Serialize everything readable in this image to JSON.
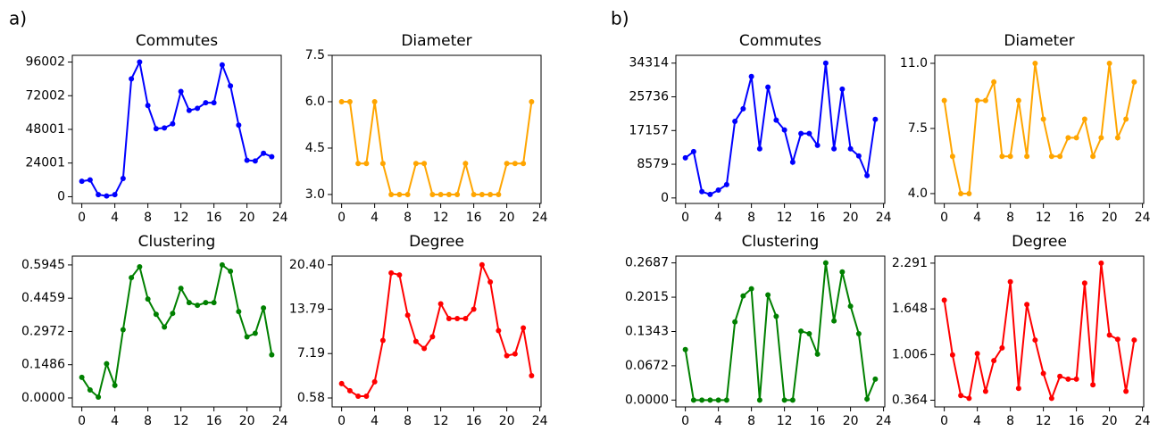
{
  "panel_labels": [
    "a)",
    "b)"
  ],
  "chart_data": [
    {
      "type": "line",
      "title": "Commutes",
      "color": "#0000ff",
      "x": [
        0,
        1,
        2,
        3,
        4,
        5,
        6,
        7,
        8,
        9,
        10,
        11,
        12,
        13,
        14,
        15,
        16,
        17,
        18,
        19,
        20,
        21,
        22,
        23
      ],
      "values": [
        11000,
        12000,
        1500,
        500,
        1500,
        13000,
        84000,
        96000,
        65000,
        48500,
        49000,
        52000,
        75000,
        61500,
        63000,
        67000,
        67000,
        94000,
        79000,
        51000,
        26000,
        25500,
        31000,
        28500
      ],
      "xlim": [
        -1.15,
        24.15
      ],
      "xticks": [
        0,
        4,
        8,
        12,
        16,
        20,
        24
      ],
      "ylim": [
        -4800,
        100800
      ],
      "yticks": [
        0,
        24001,
        48001,
        72002,
        96002
      ]
    },
    {
      "type": "line",
      "title": "Diameter",
      "color": "#ffa500",
      "x": [
        0,
        1,
        2,
        3,
        4,
        5,
        6,
        7,
        8,
        9,
        10,
        11,
        12,
        13,
        14,
        15,
        16,
        17,
        18,
        19,
        20,
        21,
        22,
        23
      ],
      "values": [
        6,
        6,
        4,
        4,
        6,
        4,
        3,
        3,
        3,
        4,
        4,
        3,
        3,
        3,
        3,
        4,
        3,
        3,
        3,
        3,
        4,
        4,
        4,
        6
      ],
      "xlim": [
        -1.15,
        24.15
      ],
      "xticks": [
        0,
        4,
        8,
        12,
        16,
        20,
        24
      ],
      "ylim": [
        2.71,
        7.5
      ],
      "yticks": [
        {
          "value": 3,
          "label": "3.0"
        },
        4.5,
        {
          "value": 6,
          "label": "6.0"
        },
        7.5
      ]
    },
    {
      "type": "line",
      "title": "Clustering",
      "color": "#008000",
      "x": [
        0,
        1,
        2,
        3,
        4,
        5,
        6,
        7,
        8,
        9,
        10,
        11,
        12,
        13,
        14,
        15,
        16,
        17,
        18,
        19,
        20,
        21,
        22,
        23
      ],
      "values": [
        0.092,
        0.036,
        0.004,
        0.153,
        0.056,
        0.305,
        0.538,
        0.586,
        0.442,
        0.374,
        0.317,
        0.378,
        0.49,
        0.426,
        0.414,
        0.426,
        0.426,
        0.5945,
        0.566,
        0.386,
        0.273,
        0.289,
        0.402,
        0.193
      ],
      "xlim": [
        -1.15,
        24.15
      ],
      "xticks": [
        0,
        4,
        8,
        12,
        16,
        20,
        24
      ],
      "ylim": [
        -0.04,
        0.634
      ],
      "yticks": [
        {
          "value": 0,
          "label": "0.0000"
        },
        0.1486,
        0.2972,
        0.4459,
        0.5945
      ]
    },
    {
      "type": "line",
      "title": "Degree",
      "color": "#ff0000",
      "x": [
        0,
        1,
        2,
        3,
        4,
        5,
        6,
        7,
        8,
        9,
        10,
        11,
        12,
        13,
        14,
        15,
        16,
        17,
        18,
        19,
        20,
        21,
        22,
        23
      ],
      "values": [
        2.72,
        1.65,
        0.85,
        0.85,
        2.99,
        9.15,
        19.2,
        18.9,
        12.9,
        9.0,
        7.95,
        9.7,
        14.6,
        12.4,
        12.4,
        12.4,
        13.8,
        20.4,
        17.85,
        10.6,
        6.87,
        7.14,
        11.0,
        3.9
      ],
      "xlim": [
        -1.15,
        24.15
      ],
      "xticks": [
        0,
        4,
        8,
        12,
        16,
        20,
        24
      ],
      "ylim": [
        -0.75,
        21.7
      ],
      "yticks": [
        0.58,
        7.19,
        13.79,
        {
          "value": 20.4,
          "label": "20.40"
        }
      ]
    },
    {
      "type": "line",
      "title": "Commutes",
      "color": "#0000ff",
      "x": [
        0,
        1,
        2,
        3,
        4,
        5,
        6,
        7,
        8,
        9,
        10,
        11,
        12,
        13,
        14,
        15,
        16,
        17,
        18,
        19,
        20,
        21,
        22,
        23
      ],
      "values": [
        10200,
        11800,
        1600,
        900,
        2000,
        3400,
        19500,
        22700,
        30900,
        12500,
        28200,
        19800,
        17300,
        9100,
        16400,
        16400,
        13400,
        34314,
        12500,
        27700,
        12500,
        10700,
        5700,
        20000
      ],
      "xlim": [
        -1.15,
        24.15
      ],
      "xticks": [
        0,
        4,
        8,
        12,
        16,
        20,
        24
      ],
      "ylim": [
        -1400,
        36300
      ],
      "yticks": [
        0,
        8579,
        17157,
        25736,
        34314
      ]
    },
    {
      "type": "line",
      "title": "Diameter",
      "color": "#ffa500",
      "x": [
        0,
        1,
        2,
        3,
        4,
        5,
        6,
        7,
        8,
        9,
        10,
        11,
        12,
        13,
        14,
        15,
        16,
        17,
        18,
        19,
        20,
        21,
        22,
        23
      ],
      "values": [
        9,
        6,
        4,
        4,
        9,
        9,
        10,
        6,
        6,
        9,
        6,
        11,
        8,
        6,
        6,
        7,
        7,
        8,
        6,
        7,
        11,
        7,
        8,
        10
      ],
      "xlim": [
        -1.15,
        24.15
      ],
      "xticks": [
        0,
        4,
        8,
        12,
        16,
        20,
        24
      ],
      "ylim": [
        3.47,
        11.43
      ],
      "yticks": [
        {
          "value": 4,
          "label": "4.0"
        },
        7.5,
        {
          "value": 11,
          "label": "11.0"
        }
      ]
    },
    {
      "type": "line",
      "title": "Clustering",
      "color": "#008000",
      "x": [
        0,
        1,
        2,
        3,
        4,
        5,
        6,
        7,
        8,
        9,
        10,
        11,
        12,
        13,
        14,
        15,
        16,
        17,
        18,
        19,
        20,
        21,
        22,
        23
      ],
      "values": [
        0.099,
        0,
        0,
        0,
        0,
        0,
        0.153,
        0.204,
        0.218,
        0,
        0.206,
        0.164,
        0,
        0,
        0.135,
        0.13,
        0.09,
        0.2687,
        0.155,
        0.251,
        0.184,
        0.13,
        0.002,
        0.041
      ],
      "xlim": [
        -1.15,
        24.15
      ],
      "xticks": [
        0,
        4,
        8,
        12,
        16,
        20,
        24
      ],
      "ylim": [
        -0.0134,
        0.282
      ],
      "yticks": [
        {
          "value": 0,
          "label": "0.0000"
        },
        0.0672,
        0.1343,
        0.2015,
        0.2687
      ]
    },
    {
      "type": "line",
      "title": "Degree",
      "color": "#ff0000",
      "x": [
        0,
        1,
        2,
        3,
        4,
        5,
        6,
        7,
        8,
        9,
        10,
        11,
        12,
        13,
        14,
        15,
        16,
        17,
        18,
        19,
        20,
        21,
        22,
        23
      ],
      "values": [
        1.77,
        1.0,
        0.43,
        0.39,
        1.02,
        0.49,
        0.92,
        1.1,
        2.03,
        0.53,
        1.71,
        1.21,
        0.74,
        0.39,
        0.7,
        0.66,
        0.66,
        2.01,
        0.58,
        2.291,
        1.28,
        1.22,
        0.49,
        1.21
      ],
      "xlim": [
        -1.15,
        24.15
      ],
      "xticks": [
        0,
        4,
        8,
        12,
        16,
        20,
        24
      ],
      "ylim": [
        0.27,
        2.39
      ],
      "yticks": [
        0.364,
        1.006,
        1.648,
        2.291
      ]
    }
  ]
}
